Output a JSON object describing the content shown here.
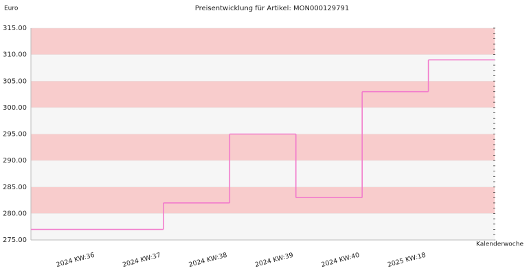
{
  "chart_data": {
    "type": "step",
    "title": "Preisentwicklung für Artikel: MON000129791",
    "y_label": "Euro",
    "x_label": "Kalenderwoche",
    "categories": [
      "2024 KW:36",
      "2024 KW:37",
      "2024 KW:38",
      "2024 KW:39",
      "2024 KW:40",
      "2025 KW:18"
    ],
    "series": [
      {
        "name": "MON000129791",
        "color": "#f27ccc",
        "values": [
          277,
          282,
          295,
          283,
          303,
          309
        ]
      }
    ],
    "ylim": [
      275,
      315
    ],
    "yticks": [
      {
        "value": 275,
        "label": "275.00"
      },
      {
        "value": 280,
        "label": "280.00"
      },
      {
        "value": 285,
        "label": "285.00"
      },
      {
        "value": 290,
        "label": "290.00"
      },
      {
        "value": 295,
        "label": "295.00"
      },
      {
        "value": 300,
        "label": "300.00"
      },
      {
        "value": 305,
        "label": "305.00"
      },
      {
        "value": 310,
        "label": "310.00"
      },
      {
        "value": 315,
        "label": "315.00"
      }
    ]
  }
}
